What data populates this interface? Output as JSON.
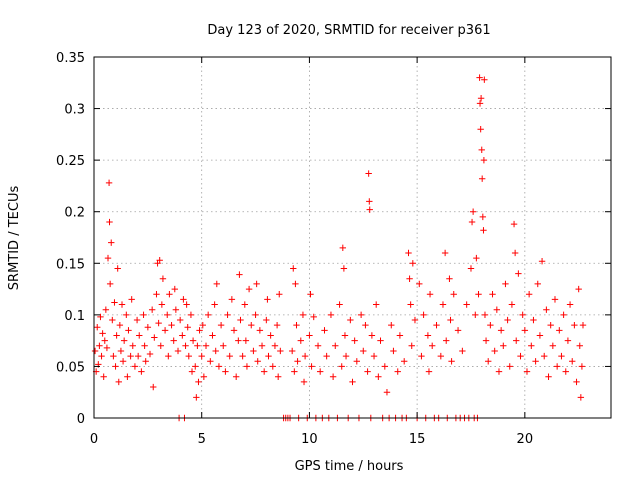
{
  "chart_data": {
    "type": "scatter",
    "title": "Day 123 of 2020, SRMTID for receiver p361",
    "xlabel": "GPS time / hours",
    "ylabel": "SRMTID / TECUs",
    "xlim": [
      0,
      24
    ],
    "ylim": [
      0,
      0.35
    ],
    "x_ticks": [
      0,
      5,
      10,
      15,
      20
    ],
    "x_tick_labels": [
      "0",
      "5",
      "10",
      "15",
      "20"
    ],
    "y_ticks": [
      0,
      0.05,
      0.1,
      0.15,
      0.2,
      0.25,
      0.3,
      0.35
    ],
    "y_tick_labels": [
      "0",
      "0.05",
      "0.1",
      "0.15",
      "0.2",
      "0.25",
      "0.3",
      "0.35"
    ],
    "grid": true,
    "marker": "+",
    "series_color": "#ff0000",
    "series": [
      {
        "name": "SRMTID",
        "points": [
          [
            0.05,
            0.065
          ],
          [
            0.1,
            0.045
          ],
          [
            0.15,
            0.088
          ],
          [
            0.2,
            0.052
          ],
          [
            0.25,
            0.07
          ],
          [
            0.3,
            0.098
          ],
          [
            0.35,
            0.06
          ],
          [
            0.4,
            0.082
          ],
          [
            0.45,
            0.04
          ],
          [
            0.5,
            0.075
          ],
          [
            0.55,
            0.105
          ],
          [
            0.6,
            0.068
          ],
          [
            0.65,
            0.155
          ],
          [
            0.7,
            0.228
          ],
          [
            0.72,
            0.19
          ],
          [
            0.75,
            0.13
          ],
          [
            0.8,
            0.17
          ],
          [
            0.85,
            0.095
          ],
          [
            0.9,
            0.06
          ],
          [
            0.95,
            0.112
          ],
          [
            1.0,
            0.05
          ],
          [
            1.05,
            0.08
          ],
          [
            1.1,
            0.145
          ],
          [
            1.15,
            0.035
          ],
          [
            1.2,
            0.09
          ],
          [
            1.25,
            0.065
          ],
          [
            1.3,
            0.11
          ],
          [
            1.35,
            0.055
          ],
          [
            1.4,
            0.075
          ],
          [
            1.5,
            0.1
          ],
          [
            1.55,
            0.04
          ],
          [
            1.6,
            0.085
          ],
          [
            1.7,
            0.06
          ],
          [
            1.75,
            0.115
          ],
          [
            1.8,
            0.07
          ],
          [
            1.9,
            0.05
          ],
          [
            2.0,
            0.095
          ],
          [
            2.05,
            0.06
          ],
          [
            2.1,
            0.08
          ],
          [
            2.2,
            0.045
          ],
          [
            2.3,
            0.1
          ],
          [
            2.35,
            0.07
          ],
          [
            2.4,
            0.055
          ],
          [
            2.5,
            0.088
          ],
          [
            2.6,
            0.062
          ],
          [
            2.7,
            0.105
          ],
          [
            2.75,
            0.03
          ],
          [
            2.8,
            0.078
          ],
          [
            2.9,
            0.12
          ],
          [
            2.95,
            0.15
          ],
          [
            3.0,
            0.092
          ],
          [
            3.05,
            0.153
          ],
          [
            3.1,
            0.07
          ],
          [
            3.15,
            0.11
          ],
          [
            3.2,
            0.135
          ],
          [
            3.3,
            0.085
          ],
          [
            3.4,
            0.1
          ],
          [
            3.45,
            0.06
          ],
          [
            3.5,
            0.12
          ],
          [
            3.6,
            0.09
          ],
          [
            3.7,
            0.075
          ],
          [
            3.75,
            0.125
          ],
          [
            3.8,
            0.105
          ],
          [
            3.9,
            0.065
          ],
          [
            3.95,
            0.0
          ],
          [
            4.0,
            0.095
          ],
          [
            4.1,
            0.08
          ],
          [
            4.15,
            0.115
          ],
          [
            4.2,
            0.0
          ],
          [
            4.25,
            0.07
          ],
          [
            4.3,
            0.11
          ],
          [
            4.35,
            0.088
          ],
          [
            4.4,
            0.06
          ],
          [
            4.5,
            0.1
          ],
          [
            4.55,
            0.045
          ],
          [
            4.6,
            0.075
          ],
          [
            4.7,
            0.05
          ],
          [
            4.75,
            0.02
          ],
          [
            4.8,
            0.07
          ],
          [
            4.85,
            0.035
          ],
          [
            4.9,
            0.085
          ],
          [
            5.0,
            0.06
          ],
          [
            5.05,
            0.09
          ],
          [
            5.1,
            0.04
          ],
          [
            5.2,
            0.07
          ],
          [
            5.3,
            0.1
          ],
          [
            5.4,
            0.055
          ],
          [
            5.5,
            0.08
          ],
          [
            5.6,
            0.11
          ],
          [
            5.65,
            0.065
          ],
          [
            5.7,
            0.13
          ],
          [
            5.8,
            0.05
          ],
          [
            5.9,
            0.09
          ],
          [
            6.0,
            0.07
          ],
          [
            6.1,
            0.045
          ],
          [
            6.2,
            0.1
          ],
          [
            6.3,
            0.06
          ],
          [
            6.4,
            0.115
          ],
          [
            6.5,
            0.085
          ],
          [
            6.6,
            0.04
          ],
          [
            6.7,
            0.075
          ],
          [
            6.75,
            0.139
          ],
          [
            6.8,
            0.095
          ],
          [
            6.9,
            0.06
          ],
          [
            7.0,
            0.11
          ],
          [
            7.05,
            0.075
          ],
          [
            7.1,
            0.05
          ],
          [
            7.2,
            0.125
          ],
          [
            7.3,
            0.09
          ],
          [
            7.4,
            0.065
          ],
          [
            7.5,
            0.1
          ],
          [
            7.55,
            0.13
          ],
          [
            7.6,
            0.055
          ],
          [
            7.7,
            0.085
          ],
          [
            7.8,
            0.07
          ],
          [
            7.9,
            0.045
          ],
          [
            8.0,
            0.095
          ],
          [
            8.05,
            0.115
          ],
          [
            8.1,
            0.06
          ],
          [
            8.2,
            0.08
          ],
          [
            8.3,
            0.05
          ],
          [
            8.4,
            0.07
          ],
          [
            8.5,
            0.09
          ],
          [
            8.55,
            0.04
          ],
          [
            8.6,
            0.12
          ],
          [
            8.65,
            0.065
          ],
          [
            8.8,
            0.0
          ],
          [
            8.9,
            0.0
          ],
          [
            9.0,
            0.0
          ],
          [
            9.1,
            0.0
          ],
          [
            9.2,
            0.065
          ],
          [
            9.25,
            0.145
          ],
          [
            9.3,
            0.045
          ],
          [
            9.35,
            0.13
          ],
          [
            9.4,
            0.09
          ],
          [
            9.45,
            0.055
          ],
          [
            9.5,
            0.0
          ],
          [
            9.6,
            0.075
          ],
          [
            9.7,
            0.1
          ],
          [
            9.75,
            0.035
          ],
          [
            9.8,
            0.06
          ],
          [
            9.9,
            0.0
          ],
          [
            10.0,
            0.08
          ],
          [
            10.05,
            0.12
          ],
          [
            10.1,
            0.05
          ],
          [
            10.2,
            0.098
          ],
          [
            10.3,
            0.0
          ],
          [
            10.4,
            0.07
          ],
          [
            10.5,
            0.045
          ],
          [
            10.6,
            0.0
          ],
          [
            10.7,
            0.085
          ],
          [
            10.8,
            0.06
          ],
          [
            10.9,
            0.0
          ],
          [
            11.0,
            0.1
          ],
          [
            11.1,
            0.04
          ],
          [
            11.2,
            0.07
          ],
          [
            11.3,
            0.0
          ],
          [
            11.4,
            0.11
          ],
          [
            11.5,
            0.05
          ],
          [
            11.55,
            0.165
          ],
          [
            11.6,
            0.145
          ],
          [
            11.65,
            0.08
          ],
          [
            11.7,
            0.06
          ],
          [
            11.8,
            0.0
          ],
          [
            11.9,
            0.095
          ],
          [
            12.0,
            0.035
          ],
          [
            12.1,
            0.075
          ],
          [
            12.2,
            0.055
          ],
          [
            12.3,
            0.0
          ],
          [
            12.4,
            0.1
          ],
          [
            12.5,
            0.065
          ],
          [
            12.6,
            0.09
          ],
          [
            12.7,
            0.045
          ],
          [
            12.75,
            0.237
          ],
          [
            12.78,
            0.21
          ],
          [
            12.8,
            0.202
          ],
          [
            12.85,
            0.0
          ],
          [
            12.9,
            0.08
          ],
          [
            13.0,
            0.06
          ],
          [
            13.1,
            0.11
          ],
          [
            13.2,
            0.04
          ],
          [
            13.3,
            0.075
          ],
          [
            13.4,
            0.0
          ],
          [
            13.5,
            0.05
          ],
          [
            13.6,
            0.025
          ],
          [
            13.7,
            0.0
          ],
          [
            13.8,
            0.09
          ],
          [
            13.9,
            0.065
          ],
          [
            14.0,
            0.0
          ],
          [
            14.1,
            0.045
          ],
          [
            14.2,
            0.08
          ],
          [
            14.3,
            0.0
          ],
          [
            14.4,
            0.055
          ],
          [
            14.5,
            0.0
          ],
          [
            14.6,
            0.16
          ],
          [
            14.65,
            0.135
          ],
          [
            14.7,
            0.11
          ],
          [
            14.75,
            0.07
          ],
          [
            14.8,
            0.15
          ],
          [
            14.9,
            0.095
          ],
          [
            15.0,
            0.0
          ],
          [
            15.1,
            0.13
          ],
          [
            15.2,
            0.06
          ],
          [
            15.3,
            0.1
          ],
          [
            15.4,
            0.0
          ],
          [
            15.5,
            0.08
          ],
          [
            15.55,
            0.045
          ],
          [
            15.6,
            0.12
          ],
          [
            15.7,
            0.07
          ],
          [
            15.8,
            0.0
          ],
          [
            15.9,
            0.09
          ],
          [
            16.0,
            0.0
          ],
          [
            16.1,
            0.06
          ],
          [
            16.2,
            0.11
          ],
          [
            16.3,
            0.16
          ],
          [
            16.35,
            0.075
          ],
          [
            16.4,
            0.0
          ],
          [
            16.5,
            0.135
          ],
          [
            16.55,
            0.095
          ],
          [
            16.6,
            0.055
          ],
          [
            16.7,
            0.12
          ],
          [
            16.8,
            0.0
          ],
          [
            16.9,
            0.085
          ],
          [
            17.0,
            0.0
          ],
          [
            17.1,
            0.065
          ],
          [
            17.2,
            0.0
          ],
          [
            17.3,
            0.11
          ],
          [
            17.4,
            0.0
          ],
          [
            17.5,
            0.145
          ],
          [
            17.55,
            0.19
          ],
          [
            17.6,
            0.2
          ],
          [
            17.65,
            0.0
          ],
          [
            17.7,
            0.1
          ],
          [
            17.75,
            0.155
          ],
          [
            17.8,
            0.0
          ],
          [
            17.85,
            0.12
          ],
          [
            17.9,
            0.33
          ],
          [
            17.92,
            0.305
          ],
          [
            17.95,
            0.28
          ],
          [
            17.97,
            0.31
          ],
          [
            18.0,
            0.26
          ],
          [
            18.02,
            0.232
          ],
          [
            18.05,
            0.195
          ],
          [
            18.08,
            0.182
          ],
          [
            18.1,
            0.25
          ],
          [
            18.12,
            0.328
          ],
          [
            18.15,
            0.1
          ],
          [
            18.2,
            0.075
          ],
          [
            18.3,
            0.055
          ],
          [
            18.4,
            0.09
          ],
          [
            18.5,
            0.12
          ],
          [
            18.6,
            0.065
          ],
          [
            18.7,
            0.105
          ],
          [
            18.8,
            0.045
          ],
          [
            18.9,
            0.085
          ],
          [
            19.0,
            0.07
          ],
          [
            19.1,
            0.13
          ],
          [
            19.2,
            0.095
          ],
          [
            19.3,
            0.05
          ],
          [
            19.4,
            0.11
          ],
          [
            19.5,
            0.188
          ],
          [
            19.55,
            0.16
          ],
          [
            19.6,
            0.075
          ],
          [
            19.7,
            0.14
          ],
          [
            19.8,
            0.06
          ],
          [
            19.9,
            0.1
          ],
          [
            20.0,
            0.085
          ],
          [
            20.1,
            0.045
          ],
          [
            20.2,
            0.12
          ],
          [
            20.3,
            0.07
          ],
          [
            20.4,
            0.095
          ],
          [
            20.5,
            0.055
          ],
          [
            20.6,
            0.13
          ],
          [
            20.7,
            0.08
          ],
          [
            20.8,
            0.152
          ],
          [
            20.9,
            0.06
          ],
          [
            21.0,
            0.105
          ],
          [
            21.1,
            0.04
          ],
          [
            21.2,
            0.09
          ],
          [
            21.3,
            0.07
          ],
          [
            21.4,
            0.115
          ],
          [
            21.5,
            0.05
          ],
          [
            21.6,
            0.085
          ],
          [
            21.7,
            0.06
          ],
          [
            21.8,
            0.1
          ],
          [
            21.9,
            0.045
          ],
          [
            22.0,
            0.075
          ],
          [
            22.1,
            0.11
          ],
          [
            22.2,
            0.055
          ],
          [
            22.3,
            0.09
          ],
          [
            22.4,
            0.035
          ],
          [
            22.5,
            0.125
          ],
          [
            22.55,
            0.07
          ],
          [
            22.6,
            0.02
          ],
          [
            22.65,
            0.05
          ],
          [
            22.7,
            0.09
          ]
        ]
      }
    ]
  }
}
